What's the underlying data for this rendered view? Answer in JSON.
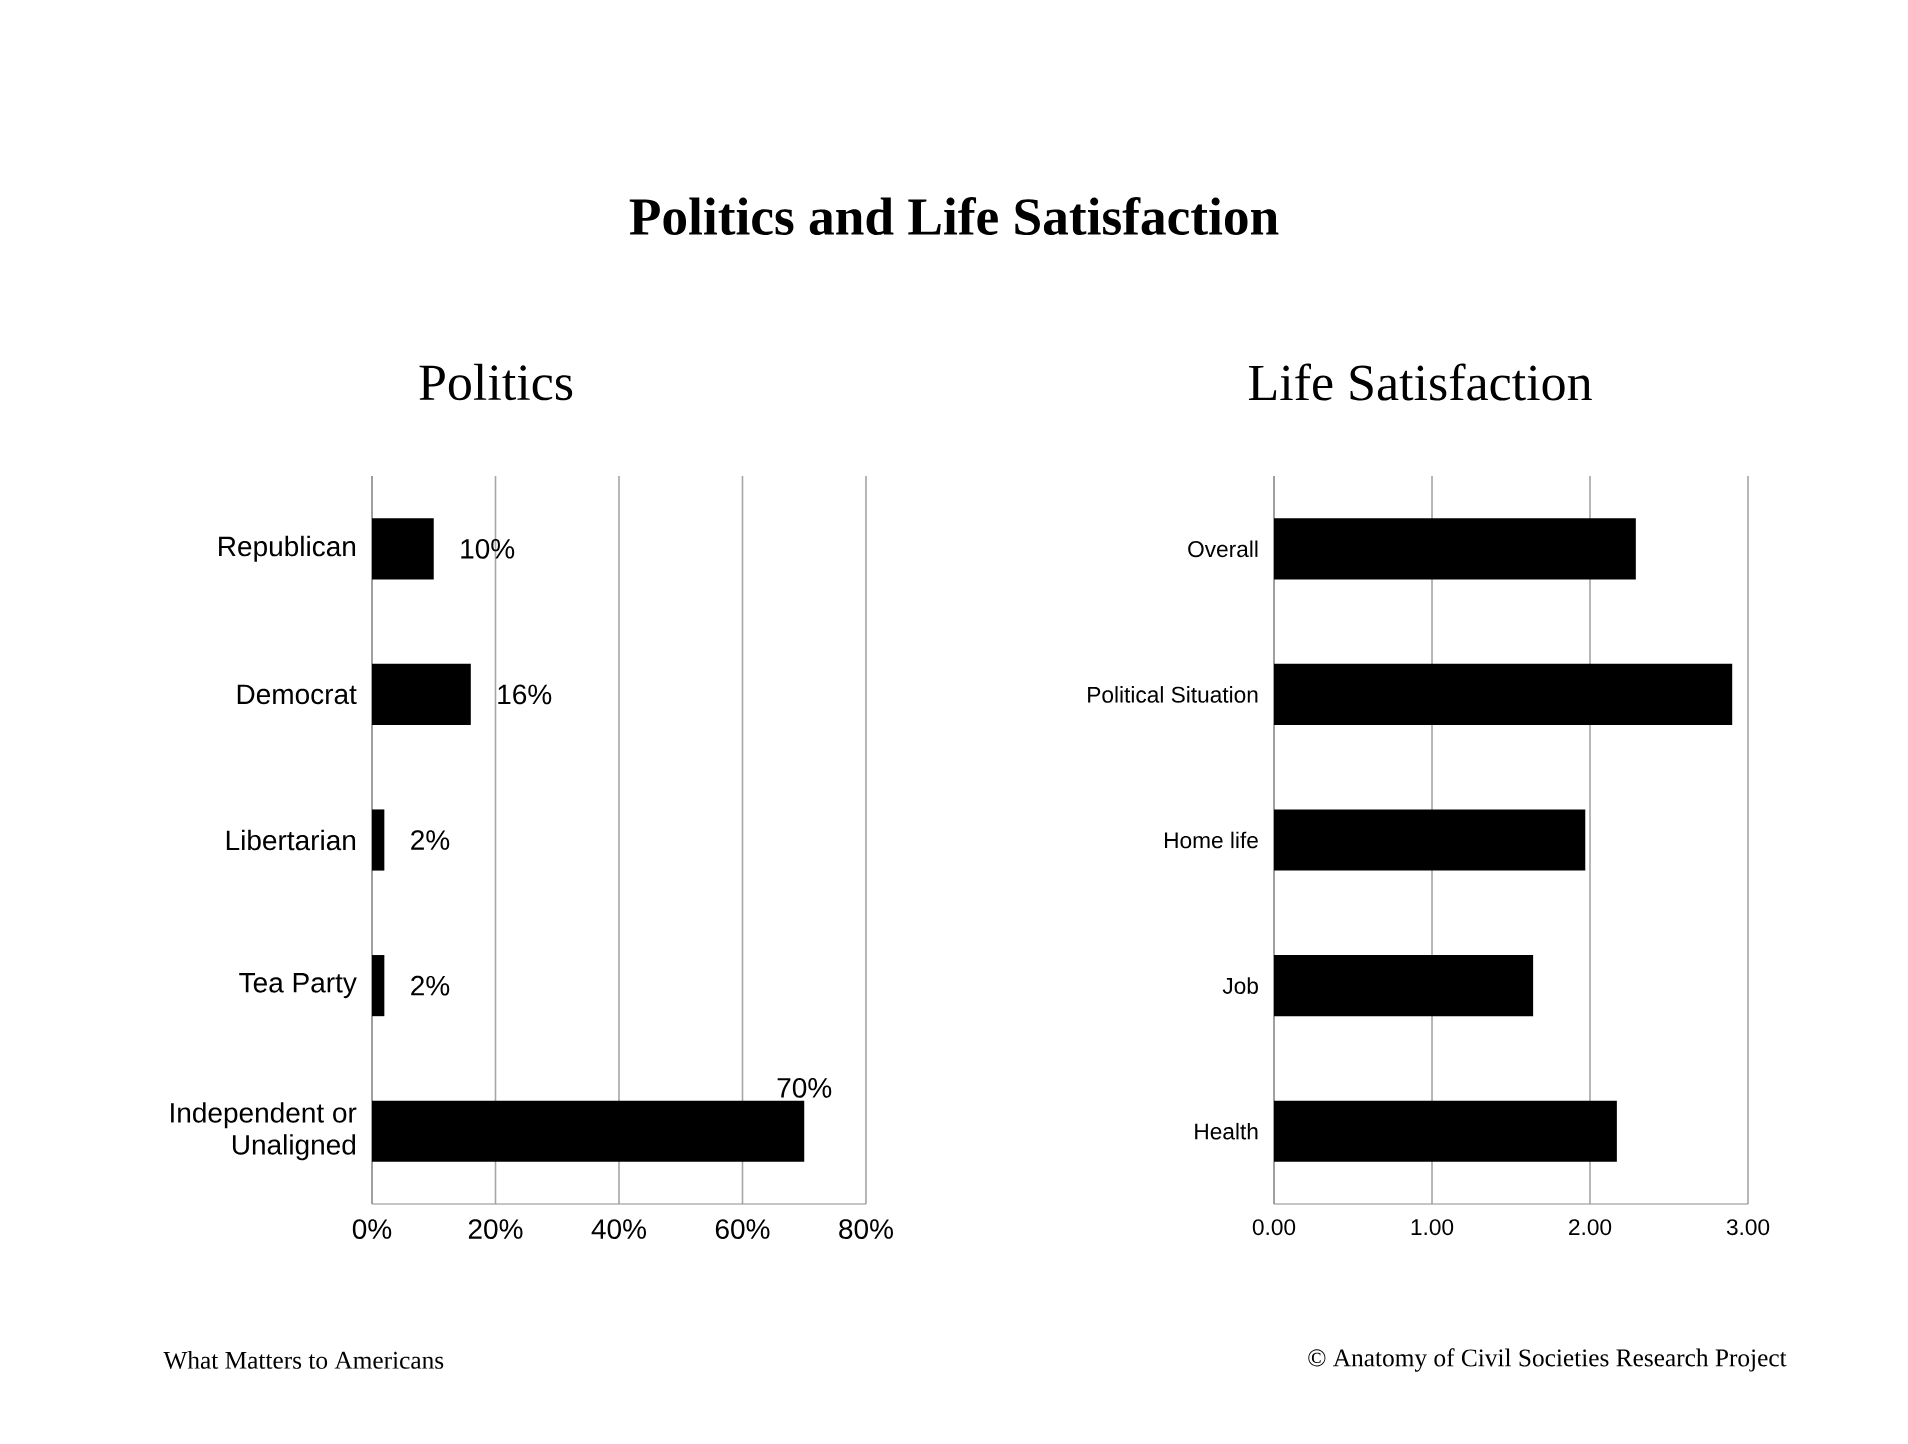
{
  "chart_data": [
    {
      "type": "bar",
      "orientation": "horizontal",
      "title": "Politics",
      "categories": [
        "Republican",
        "Democrat",
        "Libertarian",
        "Tea Party",
        "Independent or Unaligned"
      ],
      "values": [
        10,
        16,
        2,
        2,
        70
      ],
      "value_labels": [
        "10%",
        "16%",
        "2%",
        "2%",
        "70%"
      ],
      "color": "#000000",
      "xlim": [
        0,
        80
      ],
      "xticks": [
        {
          "value": 0,
          "label": "0%"
        },
        {
          "value": 20,
          "label": "20%"
        },
        {
          "value": 40,
          "label": "40%"
        },
        {
          "value": 60,
          "label": "60%"
        },
        {
          "value": 80,
          "label": "80%"
        }
      ],
      "grid": "x",
      "annotations": [
        "Politics and Life Satisfaction",
        "What Matters to Americans"
      ]
    },
    {
      "type": "bar",
      "orientation": "horizontal",
      "title": "Life Satisfaction",
      "categories": [
        "Overall",
        "Political Situation",
        "Home life",
        "Job",
        "Health"
      ],
      "values": [
        2.29,
        2.9,
        1.97,
        1.64,
        2.17
      ],
      "color": "#000000",
      "xlim": [
        0,
        3
      ],
      "xticks": [
        {
          "value": 0,
          "label": "0.00"
        },
        {
          "value": 1,
          "label": "1.00"
        },
        {
          "value": 2,
          "label": "2.00"
        },
        {
          "value": 3,
          "label": "3.00"
        }
      ],
      "grid": "x",
      "annotations": [
        "© Anatomy of Civil Societies Research Project"
      ]
    }
  ]
}
